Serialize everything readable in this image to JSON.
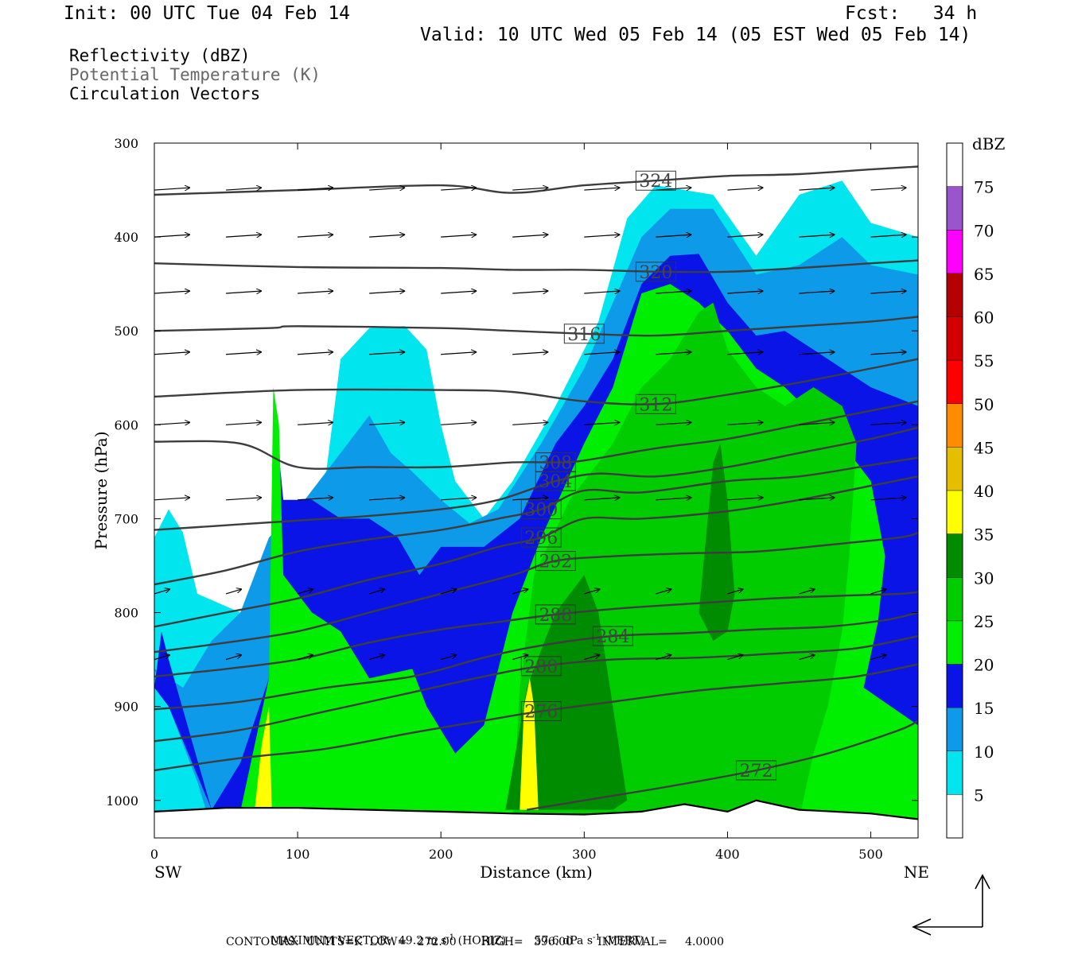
{
  "header": {
    "init": "Init: 00 UTC Tue 04 Feb 14",
    "fcst": "Fcst:   34 h",
    "valid": "Valid: 10 UTC Wed 05 Feb 14 (05 EST Wed 05 Feb 14)"
  },
  "legend": {
    "line1": "Reflectivity (dBZ)",
    "line2": "Potential Temperature (K)",
    "line3": "Circulation Vectors"
  },
  "footer": {
    "max_label": "MAXIMUM VECTOR:  49.2 m s",
    "max_h_unit": " (HORIZ)",
    "max_v": "57.6 dPa s",
    "max_v_unit": " (VERT)",
    "exp": "-1",
    "contours": "CONTOURS:  UNITS=K  LOW=   272.00       HIGH=   396.00       INTERVAL=     4.0000"
  },
  "chart_data": {
    "type": "contour",
    "xlabel": "Distance (km)",
    "ylabel": "Pressure (hPa)",
    "x_ticks": [
      0,
      100,
      200,
      300,
      400,
      500
    ],
    "y_ticks": [
      300,
      400,
      500,
      600,
      700,
      800,
      900,
      1000
    ],
    "xlim": [
      0,
      533
    ],
    "ylim": [
      300,
      1040
    ],
    "left_end_label": "SW",
    "right_end_label": "NE",
    "colorbar": {
      "title": "dBZ",
      "levels": [
        5,
        10,
        15,
        20,
        25,
        30,
        35,
        40,
        45,
        50,
        55,
        60,
        65,
        70,
        75
      ],
      "colors": [
        "#ffffff",
        "#00e5ee",
        "#0d9ae8",
        "#0a14e6",
        "#00ee00",
        "#00cc00",
        "#008c00",
        "#ffff00",
        "#e6be00",
        "#ff8c00",
        "#ff0000",
        "#d40000",
        "#b40000",
        "#ff00ff",
        "#9955cc",
        "#ffffff"
      ]
    },
    "theta_contours": [
      {
        "value": 324,
        "points": [
          [
            0,
            355
          ],
          [
            100,
            350
          ],
          [
            200,
            345
          ],
          [
            250,
            353
          ],
          [
            300,
            345
          ],
          [
            350,
            340
          ],
          [
            400,
            335
          ],
          [
            450,
            333
          ],
          [
            500,
            328
          ],
          [
            533,
            325
          ]
        ]
      },
      {
        "value": 320,
        "points": [
          [
            0,
            428
          ],
          [
            100,
            432
          ],
          [
            200,
            433
          ],
          [
            250,
            435
          ],
          [
            300,
            435
          ],
          [
            350,
            437
          ],
          [
            400,
            437
          ],
          [
            450,
            433
          ],
          [
            500,
            428
          ],
          [
            533,
            425
          ]
        ]
      },
      {
        "value": 316,
        "points": [
          [
            0,
            500
          ],
          [
            80,
            497
          ],
          [
            100,
            495
          ],
          [
            200,
            497
          ],
          [
            250,
            500
          ],
          [
            300,
            503
          ],
          [
            350,
            505
          ],
          [
            400,
            500
          ],
          [
            450,
            495
          ],
          [
            500,
            490
          ],
          [
            533,
            485
          ]
        ]
      },
      {
        "value": 312,
        "points": [
          [
            0,
            570
          ],
          [
            100,
            563
          ],
          [
            200,
            563
          ],
          [
            250,
            565
          ],
          [
            300,
            575
          ],
          [
            350,
            578
          ],
          [
            400,
            568
          ],
          [
            450,
            555
          ],
          [
            500,
            540
          ],
          [
            533,
            530
          ]
        ]
      },
      {
        "value": 308,
        "points": [
          [
            0,
            618
          ],
          [
            60,
            620
          ],
          [
            100,
            645
          ],
          [
            150,
            645
          ],
          [
            200,
            645
          ],
          [
            250,
            640
          ],
          [
            280,
            640
          ],
          [
            300,
            638
          ],
          [
            350,
            625
          ],
          [
            400,
            615
          ],
          [
            450,
            600
          ],
          [
            500,
            585
          ],
          [
            533,
            575
          ]
        ]
      },
      {
        "value": 304,
        "points": [
          [
            0,
            712
          ],
          [
            40,
            708
          ],
          [
            90,
            703
          ],
          [
            120,
            700
          ],
          [
            150,
            697
          ],
          [
            200,
            690
          ],
          [
            240,
            680
          ],
          [
            280,
            660
          ],
          [
            310,
            652
          ],
          [
            350,
            655
          ],
          [
            400,
            645
          ],
          [
            450,
            630
          ],
          [
            500,
            615
          ],
          [
            533,
            603
          ]
        ]
      },
      {
        "value": 300,
        "points": [
          [
            0,
            770
          ],
          [
            50,
            755
          ],
          [
            100,
            735
          ],
          [
            150,
            722
          ],
          [
            200,
            712
          ],
          [
            240,
            700
          ],
          [
            270,
            690
          ],
          [
            300,
            670
          ],
          [
            340,
            672
          ],
          [
            400,
            660
          ],
          [
            450,
            655
          ],
          [
            500,
            643
          ],
          [
            533,
            635
          ]
        ]
      },
      {
        "value": 296,
        "points": [
          [
            0,
            815
          ],
          [
            50,
            800
          ],
          [
            100,
            785
          ],
          [
            150,
            765
          ],
          [
            200,
            748
          ],
          [
            240,
            730
          ],
          [
            270,
            720
          ],
          [
            300,
            700
          ],
          [
            340,
            700
          ],
          [
            400,
            692
          ],
          [
            450,
            680
          ],
          [
            500,
            665
          ],
          [
            533,
            655
          ]
        ]
      },
      {
        "value": 292,
        "points": [
          [
            0,
            842
          ],
          [
            50,
            832
          ],
          [
            100,
            820
          ],
          [
            150,
            800
          ],
          [
            200,
            780
          ],
          [
            250,
            760
          ],
          [
            280,
            745
          ],
          [
            320,
            740
          ],
          [
            370,
            737
          ],
          [
            420,
            735
          ],
          [
            470,
            728
          ],
          [
            520,
            720
          ],
          [
            533,
            715
          ]
        ]
      },
      {
        "value": 288,
        "points": [
          [
            0,
            868
          ],
          [
            50,
            860
          ],
          [
            100,
            850
          ],
          [
            150,
            832
          ],
          [
            200,
            818
          ],
          [
            240,
            810
          ],
          [
            280,
            802
          ],
          [
            330,
            795
          ],
          [
            380,
            790
          ],
          [
            430,
            785
          ],
          [
            480,
            782
          ],
          [
            520,
            780
          ],
          [
            533,
            778
          ]
        ]
      },
      {
        "value": 284,
        "points": [
          [
            0,
            903
          ],
          [
            60,
            895
          ],
          [
            120,
            880
          ],
          [
            180,
            868
          ],
          [
            230,
            848
          ],
          [
            270,
            835
          ],
          [
            320,
            825
          ],
          [
            370,
            822
          ],
          [
            420,
            818
          ],
          [
            470,
            815
          ],
          [
            510,
            808
          ],
          [
            533,
            800
          ]
        ]
      },
      {
        "value": 280,
        "points": [
          [
            0,
            937
          ],
          [
            60,
            925
          ],
          [
            120,
            905
          ],
          [
            180,
            885
          ],
          [
            230,
            868
          ],
          [
            270,
            857
          ],
          [
            320,
            850
          ],
          [
            380,
            848
          ],
          [
            440,
            843
          ],
          [
            490,
            838
          ],
          [
            533,
            825
          ]
        ]
      },
      {
        "value": 276,
        "points": [
          [
            0,
            968
          ],
          [
            60,
            955
          ],
          [
            120,
            945
          ],
          [
            180,
            928
          ],
          [
            230,
            915
          ],
          [
            270,
            905
          ],
          [
            320,
            895
          ],
          [
            380,
            883
          ],
          [
            440,
            875
          ],
          [
            490,
            868
          ],
          [
            533,
            855
          ]
        ]
      },
      {
        "value": 272,
        "points": [
          [
            260,
            1010
          ],
          [
            300,
            1000
          ],
          [
            360,
            985
          ],
          [
            420,
            968
          ],
          [
            470,
            950
          ],
          [
            520,
            925
          ],
          [
            533,
            915
          ]
        ]
      }
    ],
    "vectors": {
      "max_horizontal": "49.2 m s-1",
      "max_vertical": "57.6 dPa s-1"
    },
    "contour_info": {
      "units": "K",
      "low": 272.0,
      "high": 396.0,
      "interval": 4.0
    }
  }
}
